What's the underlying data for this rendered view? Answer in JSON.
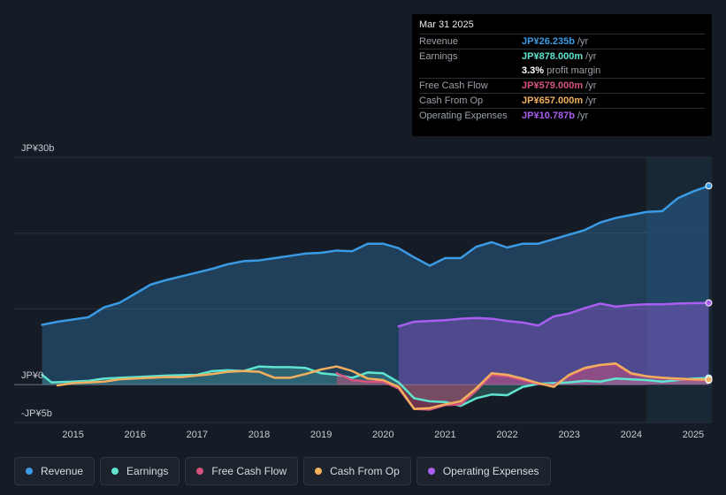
{
  "tooltip": {
    "date": "Mar 31 2025",
    "rows": [
      {
        "label": "Revenue",
        "value": "JP¥26.235b",
        "unit": "/yr",
        "color": "#3a9be4"
      },
      {
        "label": "Earnings",
        "value": "JP¥878.000m",
        "unit": "/yr",
        "color": "#5ee4cf"
      },
      {
        "label": "",
        "value": "3.3%",
        "unit": "profit margin",
        "color": "#ffffff"
      },
      {
        "label": "Free Cash Flow",
        "value": "JP¥579.000m",
        "unit": "/yr",
        "color": "#d6537e"
      },
      {
        "label": "Cash From Op",
        "value": "JP¥657.000m",
        "unit": "/yr",
        "color": "#f2b05f"
      },
      {
        "label": "Operating Expenses",
        "value": "JP¥10.787b",
        "unit": "/yr",
        "color": "#a95ef0"
      }
    ]
  },
  "legend": [
    {
      "label": "Revenue",
      "color": "#3a9be4"
    },
    {
      "label": "Earnings",
      "color": "#5ee4cf"
    },
    {
      "label": "Free Cash Flow",
      "color": "#d6537e"
    },
    {
      "label": "Cash From Op",
      "color": "#f2b05f"
    },
    {
      "label": "Operating Expenses",
      "color": "#a95ef0"
    }
  ],
  "chart_data": {
    "type": "line",
    "title": "",
    "xlabel": "",
    "ylabel": "",
    "ylim": [
      -5,
      30
    ],
    "x_tick_labels": [
      "2015",
      "2016",
      "2017",
      "2018",
      "2019",
      "2020",
      "2021",
      "2022",
      "2023",
      "2024",
      "2025"
    ],
    "x_tick_values": [
      2015,
      2016,
      2017,
      2018,
      2019,
      2020,
      2021,
      2022,
      2023,
      2024,
      2025
    ],
    "xlim": [
      2014.05,
      2025.3
    ],
    "y_tick_labels": [
      {
        "label": "JP¥30b",
        "value": 30
      },
      {
        "label": "JP¥0",
        "value": 0
      },
      {
        "label": "-JP¥5b",
        "value": -5
      }
    ],
    "highlight_start": 2024.25,
    "series": [
      {
        "name": "Revenue",
        "color": "#3a9be4",
        "fill": true,
        "points": [
          [
            2014.5,
            7.9
          ],
          [
            2014.75,
            8.3
          ],
          [
            2015,
            8.6
          ],
          [
            2015.25,
            8.9
          ],
          [
            2015.5,
            10.2
          ],
          [
            2015.75,
            10.8
          ],
          [
            2016,
            12.0
          ],
          [
            2016.25,
            13.2
          ],
          [
            2016.5,
            13.8
          ],
          [
            2016.75,
            14.3
          ],
          [
            2017,
            14.8
          ],
          [
            2017.25,
            15.3
          ],
          [
            2017.5,
            15.9
          ],
          [
            2017.75,
            16.3
          ],
          [
            2018,
            16.4
          ],
          [
            2018.25,
            16.7
          ],
          [
            2018.5,
            17.0
          ],
          [
            2018.75,
            17.3
          ],
          [
            2019,
            17.4
          ],
          [
            2019.25,
            17.7
          ],
          [
            2019.5,
            17.6
          ],
          [
            2019.75,
            18.6
          ],
          [
            2020,
            18.6
          ],
          [
            2020.25,
            18.0
          ],
          [
            2020.5,
            16.8
          ],
          [
            2020.75,
            15.7
          ],
          [
            2021,
            16.7
          ],
          [
            2021.25,
            16.7
          ],
          [
            2021.5,
            18.2
          ],
          [
            2021.75,
            18.8
          ],
          [
            2022,
            18.1
          ],
          [
            2022.25,
            18.6
          ],
          [
            2022.5,
            18.6
          ],
          [
            2022.75,
            19.2
          ],
          [
            2023,
            19.8
          ],
          [
            2023.25,
            20.4
          ],
          [
            2023.5,
            21.4
          ],
          [
            2023.75,
            22.0
          ],
          [
            2024,
            22.4
          ],
          [
            2024.25,
            22.8
          ],
          [
            2024.5,
            22.9
          ],
          [
            2024.75,
            24.6
          ],
          [
            2025,
            25.5
          ],
          [
            2025.25,
            26.235
          ]
        ]
      },
      {
        "name": "Operating Expenses",
        "color": "#a95ef0",
        "fill": true,
        "points": [
          [
            2020.25,
            7.7
          ],
          [
            2020.5,
            8.3
          ],
          [
            2020.75,
            8.4
          ],
          [
            2021,
            8.5
          ],
          [
            2021.25,
            8.7
          ],
          [
            2021.5,
            8.8
          ],
          [
            2021.75,
            8.7
          ],
          [
            2022,
            8.4
          ],
          [
            2022.25,
            8.2
          ],
          [
            2022.5,
            7.8
          ],
          [
            2022.75,
            9.0
          ],
          [
            2023,
            9.4
          ],
          [
            2023.25,
            10.1
          ],
          [
            2023.5,
            10.7
          ],
          [
            2023.75,
            10.3
          ],
          [
            2024,
            10.5
          ],
          [
            2024.25,
            10.6
          ],
          [
            2024.5,
            10.6
          ],
          [
            2024.75,
            10.7
          ],
          [
            2025,
            10.75
          ],
          [
            2025.25,
            10.787
          ]
        ]
      },
      {
        "name": "Earnings",
        "color": "#5ee4cf",
        "fill": true,
        "points": [
          [
            2014.5,
            1.3
          ],
          [
            2014.65,
            0.3
          ],
          [
            2015,
            0.4
          ],
          [
            2015.25,
            0.5
          ],
          [
            2015.5,
            0.8
          ],
          [
            2015.75,
            0.9
          ],
          [
            2016,
            1.0
          ],
          [
            2016.25,
            1.1
          ],
          [
            2016.5,
            1.2
          ],
          [
            2016.75,
            1.25
          ],
          [
            2017,
            1.3
          ],
          [
            2017.25,
            1.8
          ],
          [
            2017.5,
            1.9
          ],
          [
            2017.75,
            1.8
          ],
          [
            2018,
            2.4
          ],
          [
            2018.25,
            2.3
          ],
          [
            2018.5,
            2.3
          ],
          [
            2018.75,
            2.2
          ],
          [
            2019,
            1.5
          ],
          [
            2019.25,
            1.3
          ],
          [
            2019.5,
            0.9
          ],
          [
            2019.75,
            1.6
          ],
          [
            2020,
            1.5
          ],
          [
            2020.25,
            0.3
          ],
          [
            2020.5,
            -1.8
          ],
          [
            2020.75,
            -2.2
          ],
          [
            2021,
            -2.3
          ],
          [
            2021.25,
            -2.8
          ],
          [
            2021.5,
            -1.8
          ],
          [
            2021.75,
            -1.3
          ],
          [
            2022,
            -1.4
          ],
          [
            2022.25,
            -0.3
          ],
          [
            2022.5,
            0.1
          ],
          [
            2022.75,
            0.2
          ],
          [
            2023,
            0.3
          ],
          [
            2023.25,
            0.5
          ],
          [
            2023.5,
            0.4
          ],
          [
            2023.75,
            0.8
          ],
          [
            2024,
            0.7
          ],
          [
            2024.25,
            0.6
          ],
          [
            2024.5,
            0.4
          ],
          [
            2024.75,
            0.6
          ],
          [
            2025,
            0.8
          ],
          [
            2025.25,
            0.878
          ]
        ]
      },
      {
        "name": "Free Cash Flow",
        "color": "#d6537e",
        "fill": true,
        "points": [
          [
            2019.25,
            1.5
          ],
          [
            2019.5,
            0.6
          ],
          [
            2019.75,
            0.4
          ],
          [
            2020,
            0.4
          ],
          [
            2020.25,
            -0.5
          ],
          [
            2020.5,
            -3.2
          ],
          [
            2020.75,
            -3.3
          ],
          [
            2021,
            -2.7
          ],
          [
            2021.25,
            -2.6
          ],
          [
            2021.5,
            -0.8
          ],
          [
            2021.75,
            1.3
          ],
          [
            2022,
            1.1
          ],
          [
            2022.25,
            0.6
          ],
          [
            2022.5,
            0.1
          ],
          [
            2022.75,
            -0.1
          ],
          [
            2023,
            1.2
          ],
          [
            2023.25,
            2.1
          ],
          [
            2023.5,
            2.6
          ],
          [
            2023.75,
            2.7
          ],
          [
            2024,
            1.4
          ],
          [
            2024.25,
            1.1
          ],
          [
            2024.5,
            0.9
          ],
          [
            2024.75,
            0.7
          ],
          [
            2025,
            0.6
          ],
          [
            2025.25,
            0.579
          ]
        ]
      },
      {
        "name": "Cash From Op",
        "color": "#f2b05f",
        "fill": false,
        "points": [
          [
            2014.75,
            -0.1
          ],
          [
            2015,
            0.2
          ],
          [
            2015.25,
            0.3
          ],
          [
            2015.5,
            0.4
          ],
          [
            2015.75,
            0.7
          ],
          [
            2016,
            0.8
          ],
          [
            2016.25,
            0.9
          ],
          [
            2016.5,
            1.0
          ],
          [
            2016.75,
            1.0
          ],
          [
            2017,
            1.2
          ],
          [
            2017.25,
            1.4
          ],
          [
            2017.5,
            1.7
          ],
          [
            2017.75,
            1.8
          ],
          [
            2018,
            1.7
          ],
          [
            2018.25,
            0.9
          ],
          [
            2018.5,
            0.9
          ],
          [
            2018.75,
            1.4
          ],
          [
            2019,
            2.0
          ],
          [
            2019.25,
            2.4
          ],
          [
            2019.5,
            1.8
          ],
          [
            2019.75,
            0.8
          ],
          [
            2020,
            0.6
          ],
          [
            2020.25,
            -0.3
          ],
          [
            2020.5,
            -3.2
          ],
          [
            2020.75,
            -3.1
          ],
          [
            2021,
            -2.6
          ],
          [
            2021.25,
            -2.2
          ],
          [
            2021.5,
            -0.5
          ],
          [
            2021.75,
            1.5
          ],
          [
            2022,
            1.3
          ],
          [
            2022.25,
            0.8
          ],
          [
            2022.5,
            0.2
          ],
          [
            2022.75,
            -0.3
          ],
          [
            2023,
            1.3
          ],
          [
            2023.25,
            2.2
          ],
          [
            2023.5,
            2.6
          ],
          [
            2023.75,
            2.8
          ],
          [
            2024,
            1.5
          ],
          [
            2024.25,
            1.1
          ],
          [
            2024.5,
            0.9
          ],
          [
            2024.75,
            0.8
          ],
          [
            2025,
            0.7
          ],
          [
            2025.25,
            0.657
          ]
        ]
      }
    ]
  }
}
